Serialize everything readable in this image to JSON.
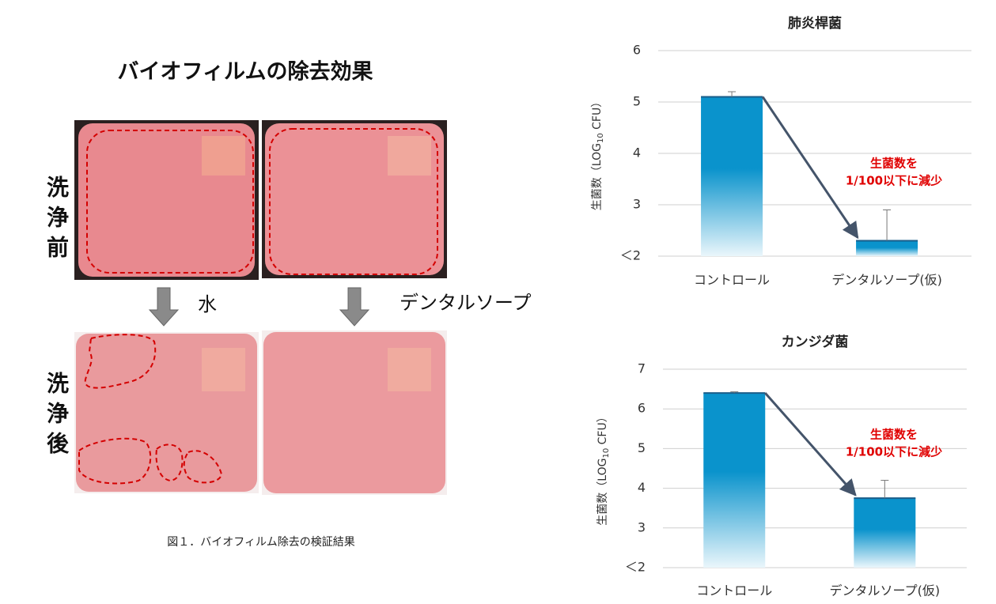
{
  "figure": {
    "title": "バイオフィルムの除去効果",
    "before": "洗浄前",
    "after": "洗浄後",
    "water": "水",
    "soap": "デンタルソープ",
    "caption": "図１．バイオフィルム除去の検証結果"
  },
  "chart_data": [
    {
      "type": "bar",
      "title": "肺炎桿菌",
      "y_label": {
        "prefix": "生菌数（LOG",
        "sub": "10",
        "suffix": " CFU）"
      },
      "categories": [
        "コントロール",
        "デンタルソープ(仮)"
      ],
      "values": [
        5.1,
        2.3
      ],
      "errors": [
        0.1,
        0.6
      ],
      "color": "#0a93cc",
      "ylim": [
        2,
        6
      ],
      "yticks": [
        {
          "value": 2,
          "label": "＜2"
        },
        3,
        4,
        5,
        6
      ],
      "grid": true,
      "annotation": [
        "生菌数を",
        "1/100以下に減少"
      ]
    },
    {
      "type": "bar",
      "title": "カンジダ菌",
      "y_label": {
        "prefix": "生菌数（LOG",
        "sub": "10",
        "suffix": " CFU）"
      },
      "categories": [
        "コントロール",
        "デンタルソープ(仮)"
      ],
      "values": [
        6.4,
        3.75
      ],
      "errors": [
        0.03,
        0.45
      ],
      "color": "#0a93cc",
      "ylim": [
        2,
        7
      ],
      "yticks": [
        {
          "value": 2,
          "label": "＜2"
        },
        3,
        4,
        5,
        6,
        7
      ],
      "grid": true,
      "annotation": [
        "生菌数を",
        "1/100以下に減少"
      ]
    }
  ]
}
